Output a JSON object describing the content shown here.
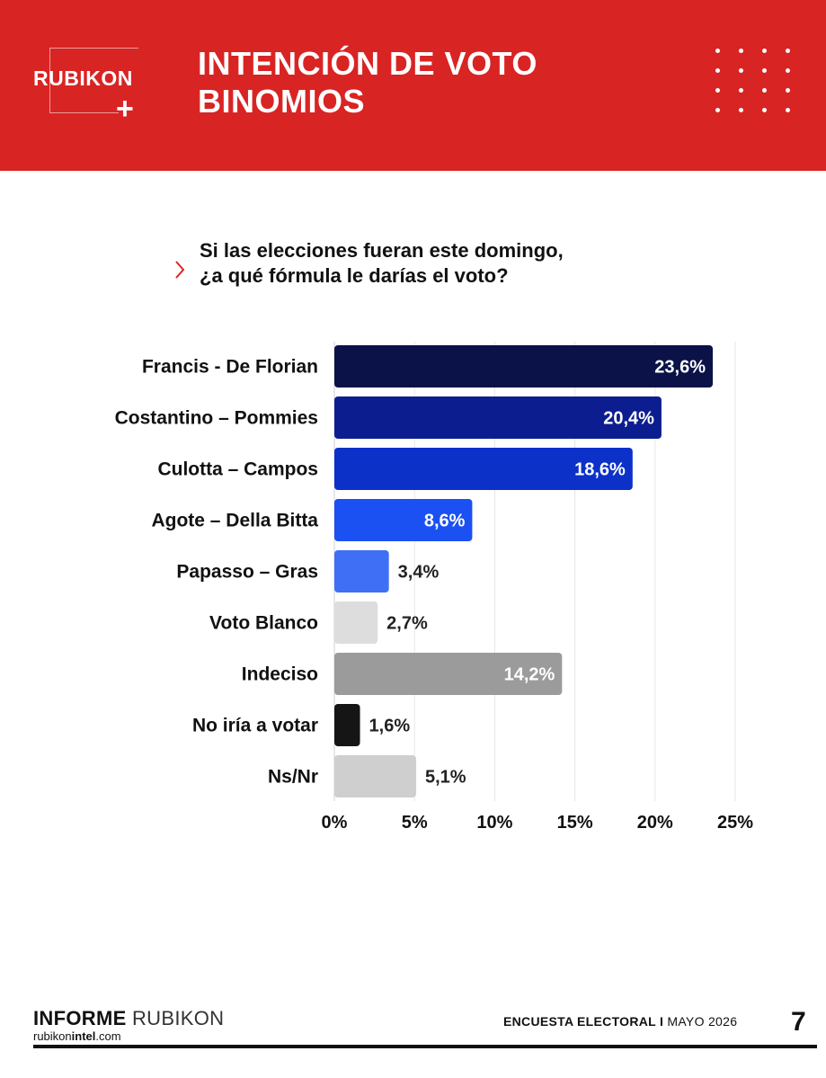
{
  "header": {
    "logo": "RUBIKON",
    "logo_plus": "+",
    "title_line1": "INTENCIÓN DE VOTO",
    "title_line2": "BINOMIOS",
    "background_color": "#d92424"
  },
  "question": {
    "line1": "Si las elecciones fueran este domingo,",
    "line2": "¿a qué fórmula le darías el voto?",
    "marker_icon": "chevron-right-icon"
  },
  "chart_data": {
    "type": "bar",
    "orientation": "horizontal",
    "categories": [
      "Francis - De Florian",
      "Costantino – Pommies",
      "Culotta – Campos",
      "Agote – Della Bitta",
      "Papasso – Gras",
      "Voto Blanco",
      "Indeciso",
      "No iría a votar",
      "Ns/Nr"
    ],
    "values": [
      23.6,
      20.4,
      18.6,
      8.6,
      3.4,
      2.7,
      14.2,
      1.6,
      5.1
    ],
    "value_labels": [
      "23,6%",
      "20,4%",
      "18,6%",
      "8,6%",
      "3,4%",
      "2,7%",
      "14,2%",
      "1,6%",
      "5,1%"
    ],
    "colors": [
      "#0b1248",
      "#0c1e8f",
      "#0c31c9",
      "#1b50f2",
      "#3e6ff5",
      "#dddddd",
      "#9b9b9b",
      "#151515",
      "#cfcfcf"
    ],
    "xlim": [
      0,
      25
    ],
    "xticks": [
      0,
      5,
      10,
      15,
      20,
      25
    ],
    "xtick_labels": [
      "0%",
      "5%",
      "10%",
      "15%",
      "20%",
      "25%"
    ],
    "grid": true
  },
  "footer": {
    "brand_bold": "INFORME",
    "brand_light": "RUBIKON",
    "url_prefix": "rubikon",
    "url_bold": "intel",
    "url_suffix": ".com",
    "survey": "ENCUESTA ELECTORAL I",
    "date": "MAYO 2026",
    "page_number": "7"
  }
}
